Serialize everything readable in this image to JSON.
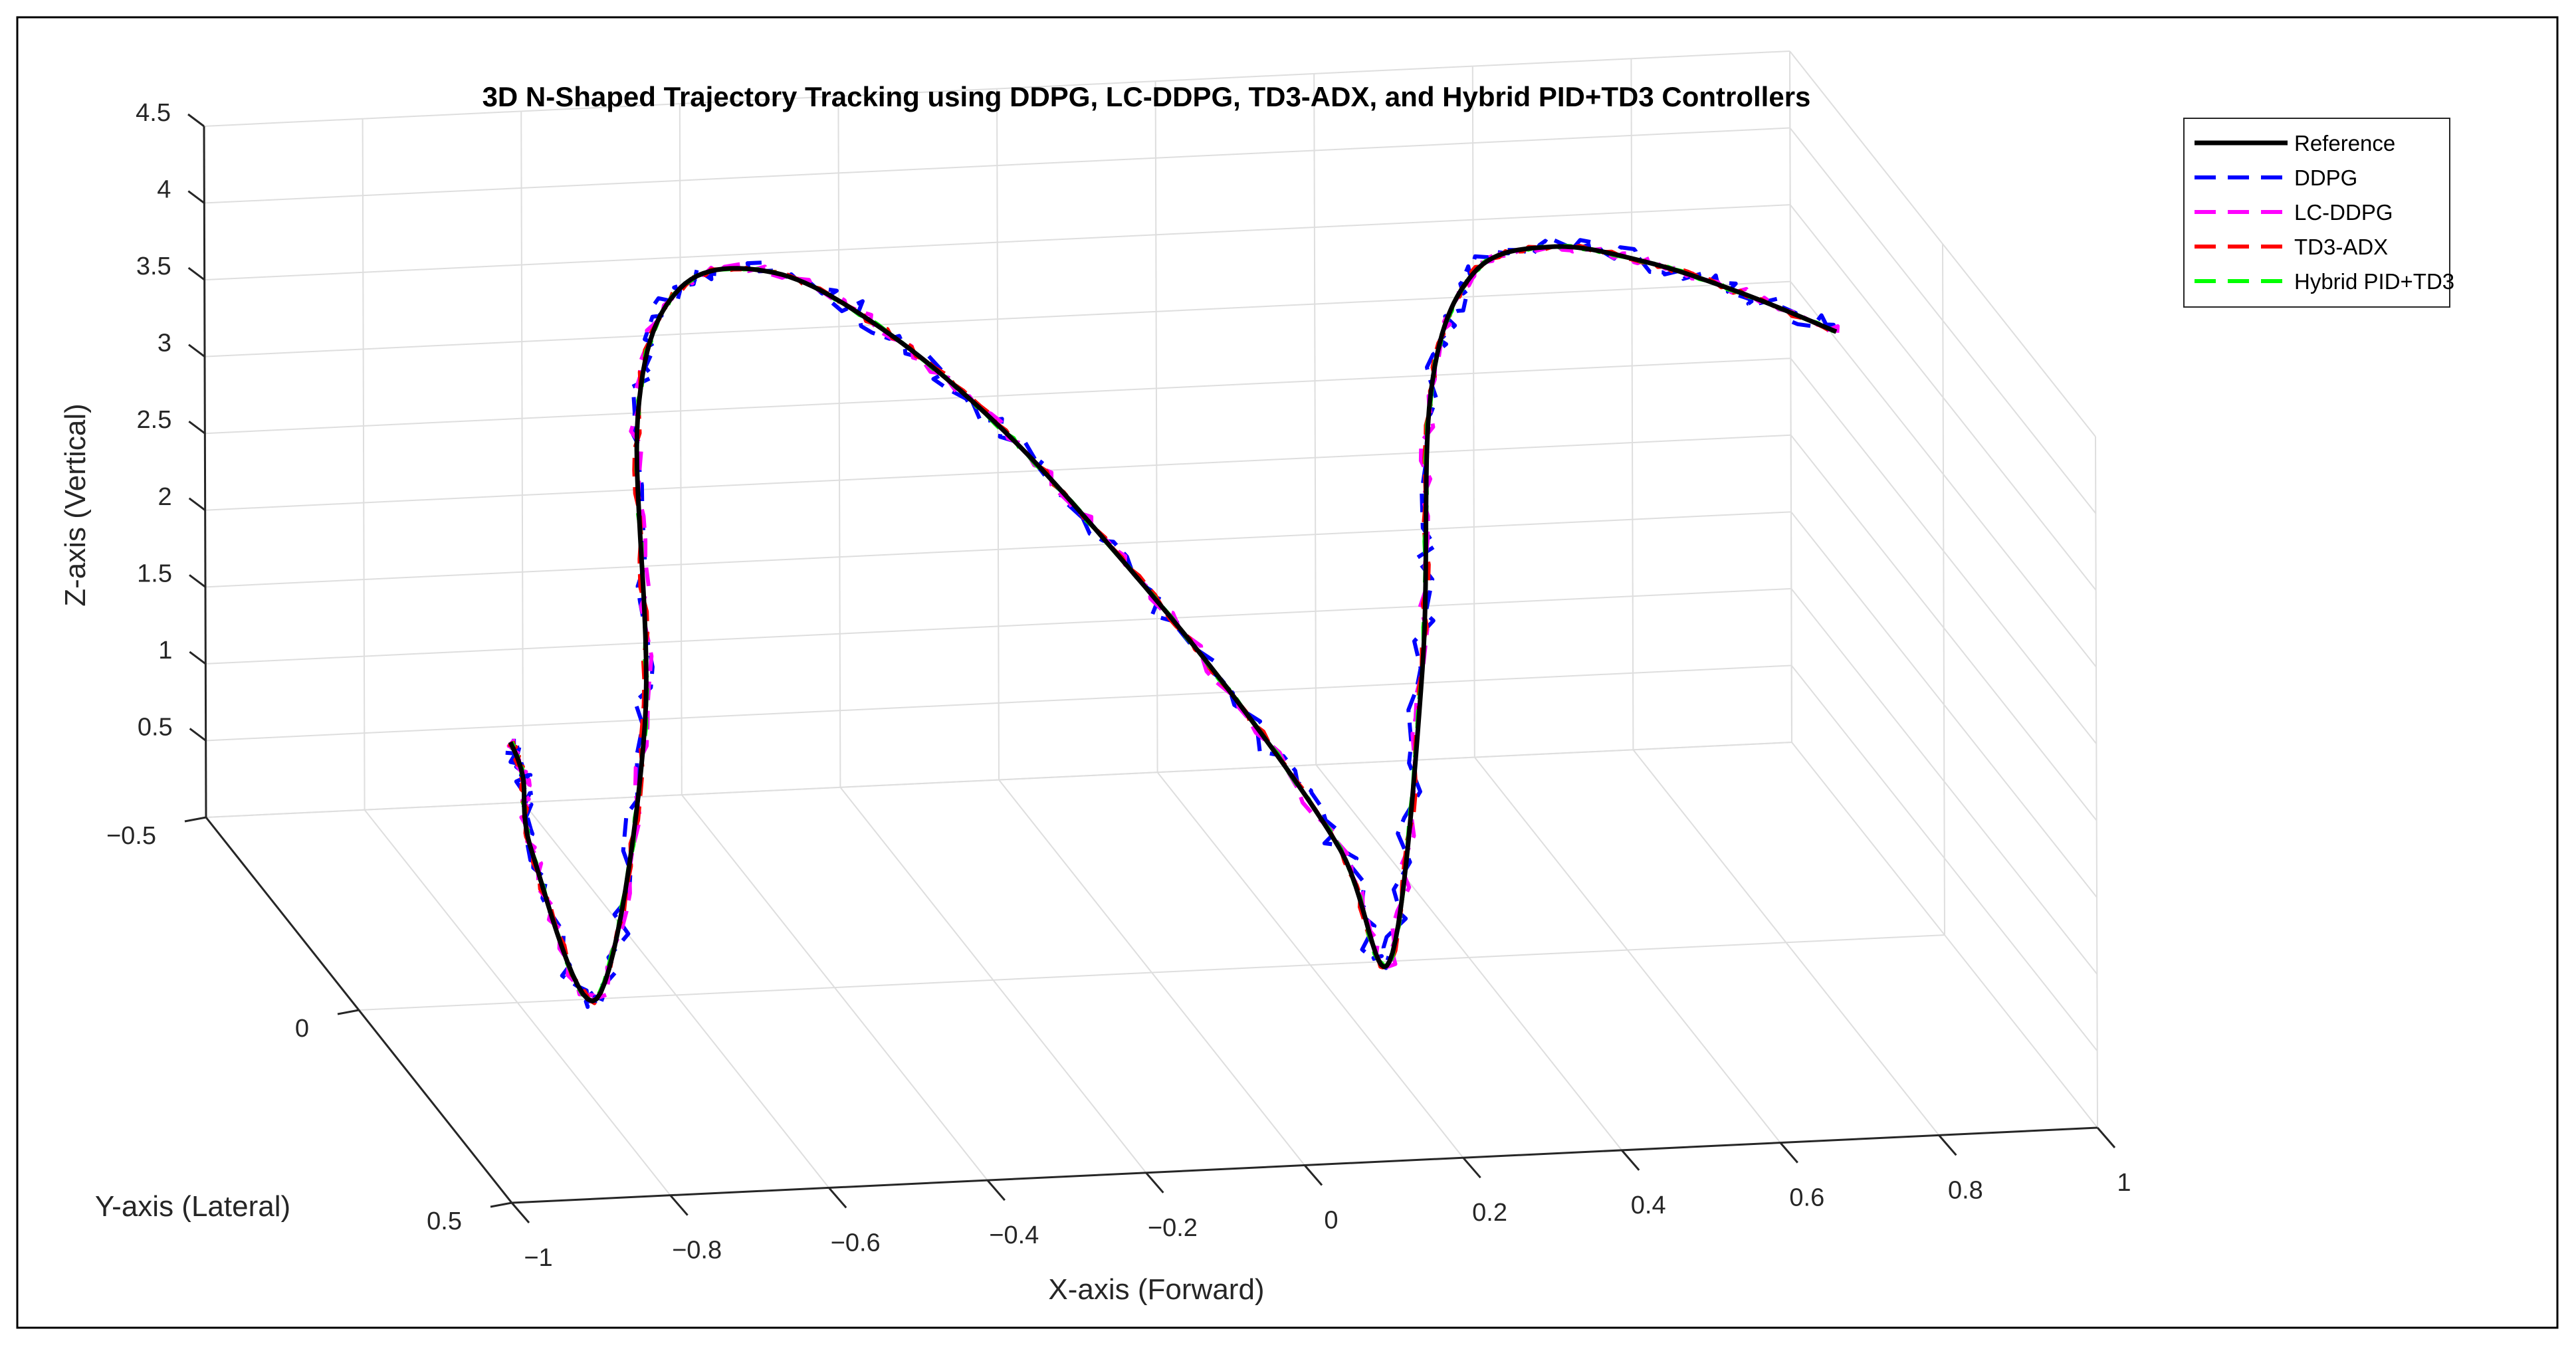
{
  "chart_data": {
    "type": "line3d",
    "title": "3D N-Shaped Trajectory Tracking using DDPG, LC-DDPG, TD3-ADX, and Hybrid PID+TD3 Controllers",
    "xlabel": "X-axis (Forward)",
    "ylabel": "Y-axis (Lateral)",
    "zlabel": "Z-axis (Vertical)",
    "xlim": [
      -1,
      1
    ],
    "ylim": [
      -0.5,
      0.5
    ],
    "zlim": [
      0,
      4.5
    ],
    "xticks": [
      -1,
      -0.8,
      -0.6,
      -0.4,
      -0.2,
      0,
      0.2,
      0.4,
      0.6,
      0.8,
      1
    ],
    "xtick_labels": [
      "−1",
      "−0.8",
      "−0.6",
      "−0.4",
      "−0.2",
      "0",
      "0.2",
      "0.4",
      "0.6",
      "0.8",
      "1"
    ],
    "yticks": [
      -0.5,
      0,
      0.5
    ],
    "ytick_labels": [
      "−0.5",
      "0",
      "0.5"
    ],
    "zticks": [
      0.5,
      1,
      1.5,
      2,
      2.5,
      3,
      3.5,
      4,
      4.5
    ],
    "ztick_labels": [
      "0.5",
      "1",
      "1.5",
      "2",
      "2.5",
      "3",
      "3.5",
      "4",
      "4.5"
    ],
    "grid": true,
    "legend_position": "top-right",
    "reference_path": {
      "x": [
        -1.0,
        -0.9,
        -0.8,
        -0.7,
        -0.6,
        -0.5,
        -0.4,
        -0.3,
        -0.2,
        -0.1,
        0.0,
        0.1,
        0.2,
        0.3,
        0.4,
        0.5,
        0.6,
        0.7,
        0.8,
        0.9,
        1.0
      ],
      "y": [
        0.5,
        0.28,
        0.05,
        0.0,
        -0.1,
        -0.38,
        -0.5,
        -0.45,
        -0.35,
        -0.22,
        -0.1,
        0.02,
        0.1,
        0.0,
        -0.15,
        -0.38,
        -0.5,
        -0.5,
        -0.45,
        -0.4,
        -0.35
      ],
      "z": [
        3.0,
        2.2,
        1.1,
        0.0,
        1.5,
        2.8,
        3.3,
        3.5,
        3.35,
        3.0,
        2.45,
        1.8,
        1.0,
        0.0,
        1.5,
        2.7,
        3.15,
        3.3,
        3.3,
        3.2,
        3.05
      ]
    },
    "series": [
      {
        "name": "Reference",
        "color": "#000000",
        "style": "solid",
        "noise": 0
      },
      {
        "name": "DDPG",
        "color": "#0000ff",
        "style": "dashed",
        "noise": 0.09
      },
      {
        "name": "LC-DDPG",
        "color": "#ff00ff",
        "style": "dashed",
        "noise": 0.05
      },
      {
        "name": "TD3-ADX",
        "color": "#ff0000",
        "style": "dashed",
        "noise": 0.025
      },
      {
        "name": "Hybrid PID+TD3",
        "color": "#00ff00",
        "style": "dashed",
        "noise": 0.012
      }
    ]
  }
}
